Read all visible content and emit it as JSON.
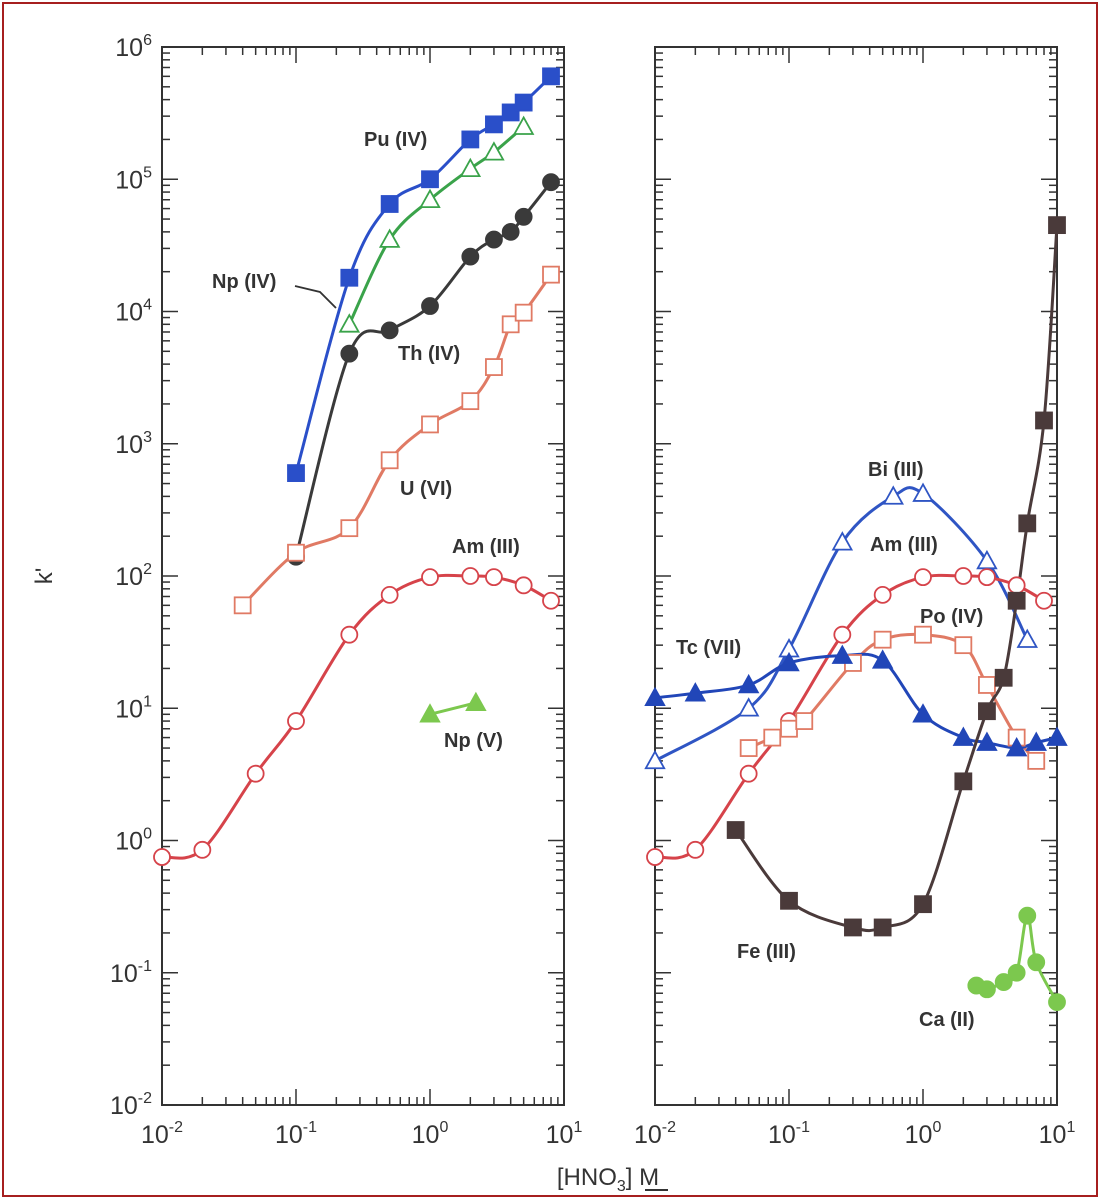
{
  "chart_data": [
    {
      "type": "line",
      "panel": "left",
      "xscale": "log",
      "yscale": "log",
      "xlim": [
        0.01,
        10
      ],
      "ylim": [
        0.01,
        1000000
      ],
      "ylabel": "k'",
      "x_tick_labels": [
        "10^-2",
        "10^-1",
        "10^0",
        "10^1"
      ],
      "y_tick_labels": [
        "10^-2",
        "10^-1",
        "10^0",
        "10^1",
        "10^2",
        "10^3",
        "10^4",
        "10^5",
        "10^6"
      ],
      "series": [
        {
          "name": "Pu (IV)",
          "marker": "square-filled",
          "color": "#2a4fc9",
          "x": [
            0.1,
            0.25,
            0.5,
            1.0,
            2.0,
            3.0,
            4.0,
            5.0,
            8.0
          ],
          "y": [
            600,
            18000,
            65000,
            100000,
            200000,
            260000,
            320000,
            380000,
            600000
          ]
        },
        {
          "name": "Np (IV)",
          "marker": "triangle-open",
          "color": "#3aa34a",
          "x": [
            0.25,
            0.5,
            1.0,
            2.0,
            3.0,
            5.0
          ],
          "y": [
            8000,
            35000,
            70000,
            120000,
            160000,
            250000
          ]
        },
        {
          "name": "Th (IV)",
          "marker": "circle-filled",
          "color": "#3a3a3a",
          "x": [
            0.1,
            0.25,
            0.5,
            1.0,
            2.0,
            3.0,
            4.0,
            5.0,
            8.0
          ],
          "y": [
            140,
            4800,
            7200,
            11000,
            26000,
            35000,
            40000,
            52000,
            95000
          ]
        },
        {
          "name": "U (VI)",
          "marker": "square-open",
          "color": "#e07a64",
          "x": [
            0.04,
            0.1,
            0.25,
            0.5,
            1.0,
            2.0,
            3.0,
            4.0,
            5.0,
            8.0
          ],
          "y": [
            60,
            150,
            230,
            750,
            1400,
            2100,
            3800,
            8000,
            9800,
            19000
          ]
        },
        {
          "name": "Am (III)",
          "marker": "circle-open",
          "color": "#d6434a",
          "x": [
            0.01,
            0.02,
            0.05,
            0.1,
            0.25,
            0.5,
            1.0,
            2.0,
            3.0,
            5.0,
            8.0
          ],
          "y": [
            0.75,
            0.85,
            3.2,
            8,
            36,
            72,
            98,
            100,
            98,
            85,
            65
          ]
        },
        {
          "name": "Np (V)",
          "marker": "triangle-filled",
          "color": "#7cc84e",
          "x": [
            1.0,
            2.2
          ],
          "y": [
            9,
            11
          ]
        }
      ]
    },
    {
      "type": "line",
      "panel": "right",
      "xscale": "log",
      "yscale": "log",
      "xlim": [
        0.01,
        10
      ],
      "ylim": [
        0.01,
        1000000
      ],
      "x_tick_labels": [
        "10^-2",
        "10^-1",
        "10^0",
        "10^1"
      ],
      "xlabel": "[HNO3] M",
      "series": [
        {
          "name": "Bi (III)",
          "marker": "triangle-open",
          "color": "#2f55c4",
          "x": [
            0.01,
            0.05,
            0.1,
            0.25,
            0.6,
            1.0,
            3.0,
            6.0
          ],
          "y": [
            4,
            10,
            28,
            180,
            400,
            420,
            130,
            33
          ]
        },
        {
          "name": "Am (III)",
          "marker": "circle-open",
          "color": "#d6434a",
          "x": [
            0.01,
            0.02,
            0.05,
            0.1,
            0.25,
            0.5,
            1.0,
            2.0,
            3.0,
            5.0,
            8.0
          ],
          "y": [
            0.75,
            0.85,
            3.2,
            8,
            36,
            72,
            98,
            100,
            98,
            85,
            65
          ]
        },
        {
          "name": "Po (IV)",
          "marker": "square-open",
          "color": "#e07a64",
          "x": [
            0.05,
            0.075,
            0.1,
            0.13,
            0.3,
            0.5,
            1.0,
            2.0,
            3.0,
            5.0,
            7.0
          ],
          "y": [
            5,
            6,
            7,
            8,
            22,
            33,
            36,
            30,
            15,
            6,
            4
          ]
        },
        {
          "name": "Tc (VII)",
          "marker": "triangle-filled",
          "color": "#2146b8",
          "x": [
            0.01,
            0.02,
            0.05,
            0.1,
            0.25,
            0.5,
            1.0,
            2.0,
            3.0,
            5.0,
            7.0,
            10.0
          ],
          "y": [
            12,
            13,
            15,
            22,
            25,
            23,
            9,
            6,
            5.5,
            5,
            5.5,
            6
          ]
        },
        {
          "name": "Fe (III)",
          "marker": "square-filled",
          "color": "#4a3a3a",
          "x": [
            0.04,
            0.1,
            0.3,
            0.5,
            1.0,
            2.0,
            3.0,
            4.0,
            5.0,
            6.0,
            8.0,
            10.0
          ],
          "y": [
            1.2,
            0.35,
            0.22,
            0.22,
            0.33,
            2.8,
            9.5,
            17,
            65,
            250,
            1500,
            45000
          ]
        },
        {
          "name": "Ca (II)",
          "marker": "circle-filled",
          "color": "#7cc84e",
          "x": [
            2.5,
            3.0,
            4.0,
            5.0,
            6.0,
            7.0,
            10.0
          ],
          "y": [
            0.08,
            0.075,
            0.085,
            0.1,
            0.27,
            0.12,
            0.06
          ]
        }
      ]
    }
  ]
}
